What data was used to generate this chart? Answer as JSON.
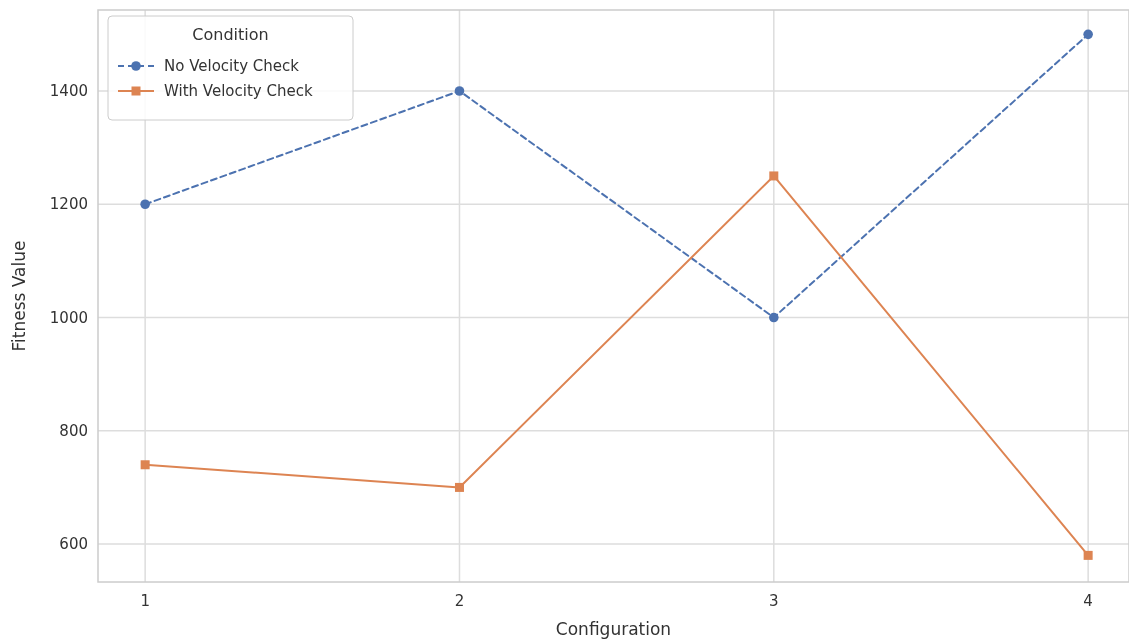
{
  "chart_data": {
    "type": "line",
    "xlabel": "Configuration",
    "ylabel": "Fitness Value",
    "legend_title": "Condition",
    "x": [
      1,
      2,
      3,
      4
    ],
    "series": [
      {
        "name": "No Velocity Check",
        "color": "#4c72b0",
        "values": [
          1200,
          1400,
          1000,
          1500
        ],
        "marker": "circle",
        "line_style": "dashed"
      },
      {
        "name": "With Velocity Check",
        "color": "#dd8452",
        "values": [
          740,
          700,
          1250,
          580
        ],
        "marker": "square",
        "line_style": "solid"
      }
    ],
    "xlim": [
      0.85,
      4.13
    ],
    "ylim": [
      533,
      1543
    ],
    "xticks": [
      1,
      2,
      3,
      4
    ],
    "yticks": [
      600,
      800,
      1000,
      1200,
      1400
    ],
    "grid": true,
    "legend": "top left"
  }
}
